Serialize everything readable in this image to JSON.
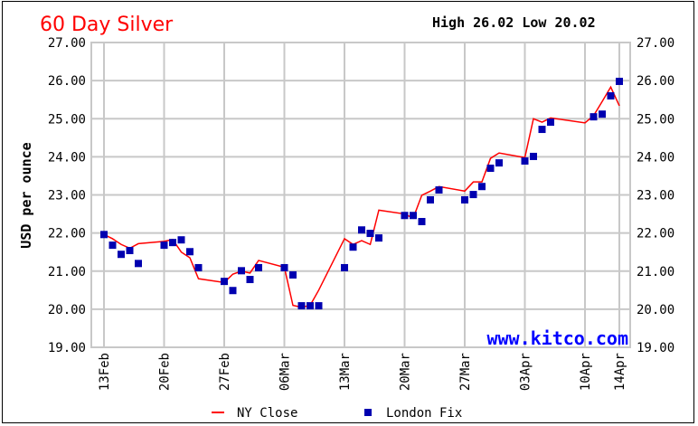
{
  "chart_data": {
    "type": "line",
    "title": "60 Day Silver",
    "summary": {
      "high_label": "High",
      "high": "26.02",
      "low_label": "Low",
      "low": "20.02"
    },
    "ylabel": "USD per ounce",
    "ylim": [
      19,
      27
    ],
    "yticks": [
      "19.00",
      "20.00",
      "21.00",
      "22.00",
      "23.00",
      "24.00",
      "25.00",
      "26.00",
      "27.00"
    ],
    "xticks": [
      {
        "label": "13Feb",
        "date": "2023-02-13"
      },
      {
        "label": "20Feb",
        "date": "2023-02-20"
      },
      {
        "label": "27Feb",
        "date": "2023-02-27"
      },
      {
        "label": "06Mar",
        "date": "2023-03-06"
      },
      {
        "label": "13Mar",
        "date": "2023-03-13"
      },
      {
        "label": "20Mar",
        "date": "2023-03-20"
      },
      {
        "label": "27Mar",
        "date": "2023-03-27"
      },
      {
        "label": "03Apr",
        "date": "2023-04-03"
      },
      {
        "label": "10Apr",
        "date": "2023-04-10"
      },
      {
        "label": "14Apr",
        "date": "2023-04-14"
      }
    ],
    "grid": true,
    "legend_position": "bottom",
    "watermark": "www.kitco.com",
    "colors": {
      "ny_close": "#ff0000",
      "london_fix": "#0000b0",
      "grid": "#c8c8c8",
      "title": "#ff0000",
      "watermark": "#0000ff"
    },
    "series": [
      {
        "name": "NY Close",
        "style": "line",
        "x": [
          "2023-02-13",
          "2023-02-14",
          "2023-02-15",
          "2023-02-16",
          "2023-02-17",
          "2023-02-20",
          "2023-02-21",
          "2023-02-22",
          "2023-02-23",
          "2023-02-24",
          "2023-02-27",
          "2023-02-28",
          "2023-03-01",
          "2023-03-02",
          "2023-03-03",
          "2023-03-06",
          "2023-03-07",
          "2023-03-08",
          "2023-03-09",
          "2023-03-10",
          "2023-03-13",
          "2023-03-14",
          "2023-03-15",
          "2023-03-16",
          "2023-03-17",
          "2023-03-20",
          "2023-03-21",
          "2023-03-22",
          "2023-03-23",
          "2023-03-24",
          "2023-03-27",
          "2023-03-28",
          "2023-03-29",
          "2023-03-30",
          "2023-03-31",
          "2023-04-03",
          "2023-04-04",
          "2023-04-05",
          "2023-04-06",
          "2023-04-10",
          "2023-04-11",
          "2023-04-12",
          "2023-04-13",
          "2023-04-14"
        ],
        "y": [
          21.96,
          21.85,
          21.7,
          21.6,
          21.72,
          21.78,
          21.83,
          21.5,
          21.35,
          20.8,
          20.7,
          20.92,
          21.0,
          20.95,
          21.28,
          21.1,
          20.1,
          20.05,
          20.1,
          20.5,
          21.85,
          21.7,
          21.8,
          21.7,
          22.6,
          22.5,
          22.39,
          22.99,
          23.1,
          23.22,
          23.1,
          23.34,
          23.34,
          23.96,
          24.1,
          23.98,
          25.0,
          24.91,
          25.02,
          24.89,
          25.08,
          25.45,
          25.83,
          25.34
        ]
      },
      {
        "name": "London Fix",
        "style": "marker",
        "x": [
          "2023-02-13",
          "2023-02-14",
          "2023-02-15",
          "2023-02-16",
          "2023-02-17",
          "2023-02-20",
          "2023-02-21",
          "2023-02-22",
          "2023-02-23",
          "2023-02-24",
          "2023-02-27",
          "2023-02-28",
          "2023-03-01",
          "2023-03-02",
          "2023-03-03",
          "2023-03-06",
          "2023-03-07",
          "2023-03-08",
          "2023-03-09",
          "2023-03-10",
          "2023-03-13",
          "2023-03-14",
          "2023-03-15",
          "2023-03-16",
          "2023-03-17",
          "2023-03-20",
          "2023-03-21",
          "2023-03-22",
          "2023-03-23",
          "2023-03-24",
          "2023-03-27",
          "2023-03-28",
          "2023-03-29",
          "2023-03-30",
          "2023-03-31",
          "2023-04-03",
          "2023-04-04",
          "2023-04-05",
          "2023-04-06",
          "2023-04-11",
          "2023-04-12",
          "2023-04-13",
          "2023-04-14"
        ],
        "y": [
          21.96,
          21.68,
          21.44,
          21.54,
          21.2,
          21.68,
          21.75,
          21.82,
          21.51,
          21.09,
          20.73,
          20.49,
          21.01,
          20.78,
          21.09,
          21.09,
          20.9,
          20.09,
          20.09,
          20.09,
          21.09,
          21.63,
          22.08,
          21.99,
          21.87,
          22.46,
          22.46,
          22.3,
          22.87,
          23.13,
          22.87,
          23.01,
          23.22,
          23.7,
          23.84,
          23.89,
          24.01,
          24.72,
          24.91,
          25.05,
          25.12,
          25.6,
          25.98
        ]
      }
    ]
  }
}
